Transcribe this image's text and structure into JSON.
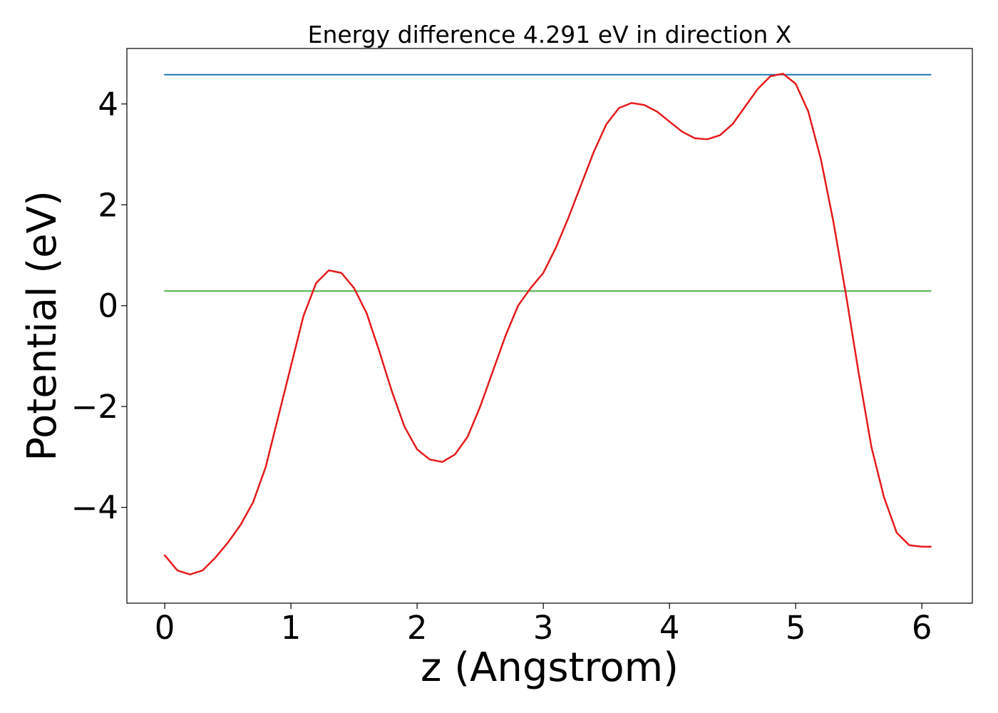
{
  "chart_data": {
    "type": "line",
    "title": "Energy difference 4.291 eV in direction X",
    "xlabel": "z (Angstrom)",
    "ylabel": "Potential (eV)",
    "xlim": [
      -0.3,
      6.4
    ],
    "ylim": [
      -5.9,
      5.1
    ],
    "xticks": [
      0,
      1,
      2,
      3,
      4,
      5,
      6
    ],
    "xtick_labels": [
      "0",
      "1",
      "2",
      "3",
      "4",
      "5",
      "6"
    ],
    "yticks": [
      -4,
      -2,
      0,
      2,
      4
    ],
    "ytick_labels": [
      "−4",
      "−2",
      "0",
      "2",
      "4"
    ],
    "grid": false,
    "colors": {
      "potential": "#e41a1c",
      "max_level": "#1f77b4",
      "reference_level": "#4daf4a"
    },
    "series": [
      {
        "key": "potential",
        "x": [
          0.0,
          0.1,
          0.2,
          0.3,
          0.4,
          0.5,
          0.6,
          0.7,
          0.8,
          0.9,
          1.0,
          1.1,
          1.2,
          1.3,
          1.4,
          1.5,
          1.6,
          1.7,
          1.8,
          1.9,
          2.0,
          2.1,
          2.2,
          2.3,
          2.4,
          2.5,
          2.6,
          2.7,
          2.8,
          2.9,
          3.0,
          3.1,
          3.2,
          3.3,
          3.4,
          3.5,
          3.6,
          3.7,
          3.8,
          3.9,
          4.0,
          4.1,
          4.2,
          4.3,
          4.4,
          4.5,
          4.6,
          4.7,
          4.8,
          4.9,
          5.0,
          5.1,
          5.2,
          5.3,
          5.4,
          5.5,
          5.6,
          5.7,
          5.8,
          5.9,
          6.0,
          6.07
        ],
        "y": [
          -4.95,
          -5.25,
          -5.33,
          -5.25,
          -5.0,
          -4.7,
          -4.35,
          -3.9,
          -3.2,
          -2.2,
          -1.2,
          -0.2,
          0.45,
          0.7,
          0.65,
          0.35,
          -0.15,
          -0.9,
          -1.7,
          -2.4,
          -2.85,
          -3.05,
          -3.1,
          -2.95,
          -2.6,
          -2.0,
          -1.3,
          -0.6,
          0.0,
          0.35,
          0.65,
          1.15,
          1.75,
          2.4,
          3.05,
          3.6,
          3.92,
          4.02,
          3.98,
          3.85,
          3.65,
          3.45,
          3.32,
          3.3,
          3.38,
          3.6,
          3.95,
          4.3,
          4.55,
          4.6,
          4.4,
          3.85,
          2.9,
          1.65,
          0.2,
          -1.35,
          -2.8,
          -3.8,
          -4.5,
          -4.75,
          -4.78,
          -4.78
        ]
      },
      {
        "key": "max_level",
        "x": [
          0,
          6.07
        ],
        "y": [
          4.58,
          4.58
        ]
      },
      {
        "key": "reference_level",
        "x": [
          0,
          6.07
        ],
        "y": [
          0.29,
          0.29
        ]
      }
    ]
  }
}
